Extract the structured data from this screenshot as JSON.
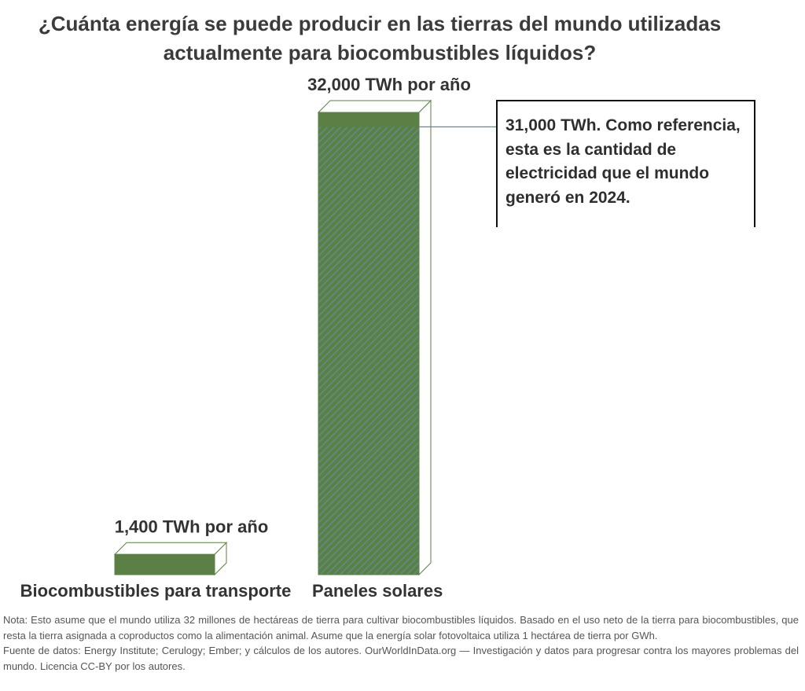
{
  "title": {
    "line1": "¿Cuánta energía se puede producir en las tierras del mundo utilizadas",
    "line2": "actualmente para biocombustibles líquidos?"
  },
  "chart_data": {
    "type": "bar",
    "categories": [
      "Biocombustibles para transporte",
      "Paneles solares"
    ],
    "values": [
      1400,
      32000
    ],
    "value_labels": [
      "1,400 TWh por año",
      "32,000 TWh por año"
    ],
    "reference": {
      "value": 31000
    },
    "annotation": "31,000 TWh. Como referencia, esta es la cantidad de electricidad que el mundo generó en 2024.",
    "colors": {
      "bar": "#5b7f45",
      "hatch": "#5b8f8a",
      "outline": "#5b7f45"
    }
  },
  "footer": {
    "note": "Nota: Esto asume que el mundo utiliza 32 millones de hectáreas de tierra para cultivar biocombustibles líquidos. Basado en el uso neto de la tierra para biocombustibles, que resta la tierra asignada a coproductos como la alimentación animal. Asume que la energía solar fotovoltaica utiliza 1 hectárea de tierra por GWh.",
    "source": "Fuente de datos: Energy Institute; Cerulogy; Ember; y cálculos de los autores. OurWorldInData.org — Investigación y datos para progresar contra los mayores problemas del mundo. Licencia CC-BY por los autores."
  }
}
